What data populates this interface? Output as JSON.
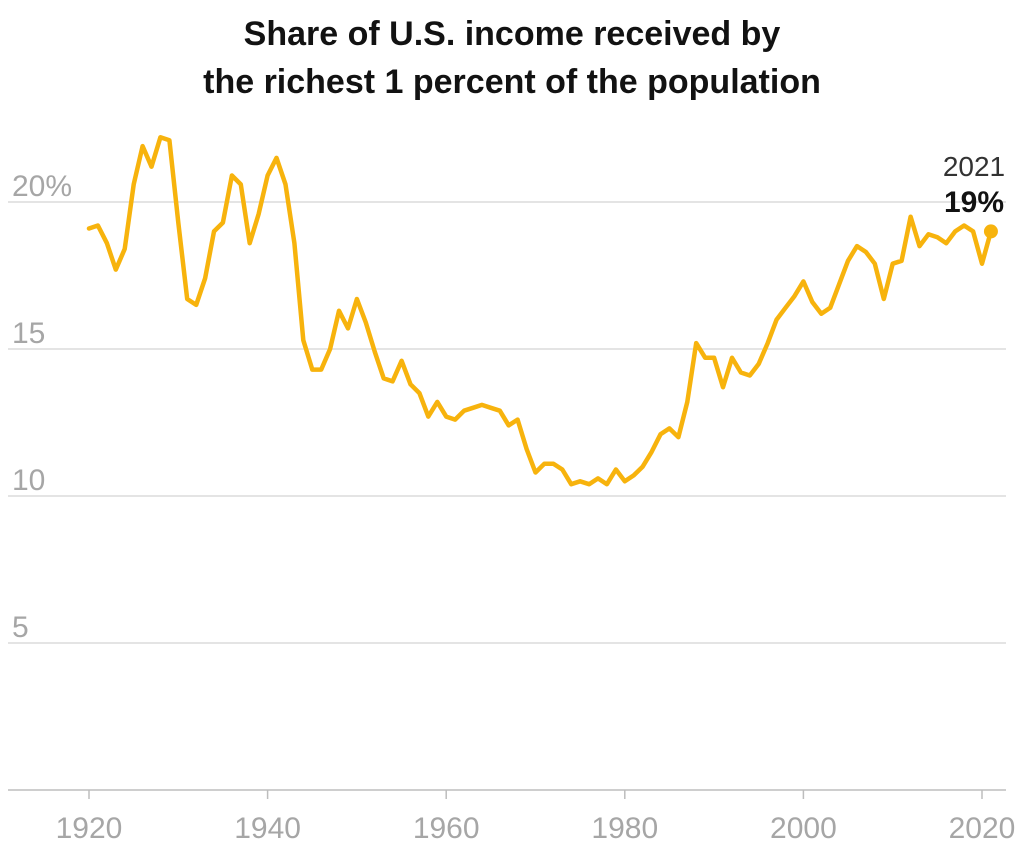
{
  "title_line1": "Share of U.S. income received by",
  "title_line2": "the richest 1 percent of the population",
  "chart_data": {
    "type": "line",
    "title": "Share of U.S. income received by the richest 1 percent of the population",
    "xlabel": "",
    "ylabel": "",
    "xlim": [
      1920,
      2021
    ],
    "ylim": [
      0,
      22
    ],
    "x_ticks": [
      1920,
      1940,
      1960,
      1980,
      2000,
      2020
    ],
    "y_ticks": [
      {
        "value": 5,
        "label": "5"
      },
      {
        "value": 10,
        "label": "10"
      },
      {
        "value": 15,
        "label": "15"
      },
      {
        "value": 20,
        "label": "20%"
      }
    ],
    "grid": "horizontal",
    "line_color": "#f7b30d",
    "series": [
      {
        "x": [
          1920,
          1921,
          1922,
          1923,
          1924,
          1925,
          1926,
          1927,
          1928,
          1929,
          1930,
          1931,
          1932,
          1933,
          1934,
          1935,
          1936,
          1937,
          1938,
          1939,
          1940,
          1941,
          1942,
          1943,
          1944,
          1945,
          1946,
          1947,
          1948,
          1949,
          1950,
          1951,
          1952,
          1953,
          1954,
          1955,
          1956,
          1957,
          1958,
          1959,
          1960,
          1961,
          1962,
          1963,
          1964,
          1965,
          1966,
          1967,
          1968,
          1969,
          1970,
          1971,
          1972,
          1973,
          1974,
          1975,
          1976,
          1977,
          1978,
          1979,
          1980,
          1981,
          1982,
          1983,
          1984,
          1985,
          1986,
          1987,
          1988,
          1989,
          1990,
          1991,
          1992,
          1993,
          1994,
          1995,
          1996,
          1997,
          1998,
          1999,
          2000,
          2001,
          2002,
          2003,
          2004,
          2005,
          2006,
          2007,
          2008,
          2009,
          2010,
          2011,
          2012,
          2013,
          2014,
          2015,
          2016,
          2017,
          2018,
          2019,
          2020,
          2021
        ],
        "values": [
          19.1,
          19.2,
          18.6,
          17.7,
          18.4,
          20.6,
          21.9,
          21.2,
          22.2,
          22.1,
          19.3,
          16.7,
          16.5,
          17.4,
          19.0,
          19.3,
          20.9,
          20.6,
          18.6,
          19.6,
          20.9,
          21.5,
          20.6,
          18.6,
          15.3,
          14.3,
          14.3,
          15.0,
          16.3,
          15.7,
          16.7,
          15.9,
          14.9,
          14.0,
          13.9,
          14.6,
          13.8,
          13.5,
          12.7,
          13.2,
          12.7,
          12.6,
          12.9,
          13.0,
          13.1,
          13.0,
          12.9,
          12.4,
          12.6,
          11.6,
          10.8,
          11.1,
          11.1,
          10.9,
          10.4,
          10.5,
          10.4,
          10.6,
          10.4,
          10.9,
          10.5,
          10.7,
          11.0,
          11.5,
          12.1,
          12.3,
          12.0,
          13.2,
          15.2,
          14.7,
          14.7,
          13.7,
          14.7,
          14.2,
          14.1,
          14.5,
          15.2,
          16.0,
          16.4,
          16.8,
          17.3,
          16.6,
          16.2,
          16.4,
          17.2,
          18.0,
          18.5,
          18.3,
          17.9,
          16.7,
          17.9,
          18.0,
          19.5,
          18.5,
          18.9,
          18.8,
          18.6,
          19.0,
          19.2,
          19.0,
          17.9,
          19.0
        ]
      }
    ],
    "annotation": {
      "year": "2021",
      "value": "19%"
    }
  }
}
